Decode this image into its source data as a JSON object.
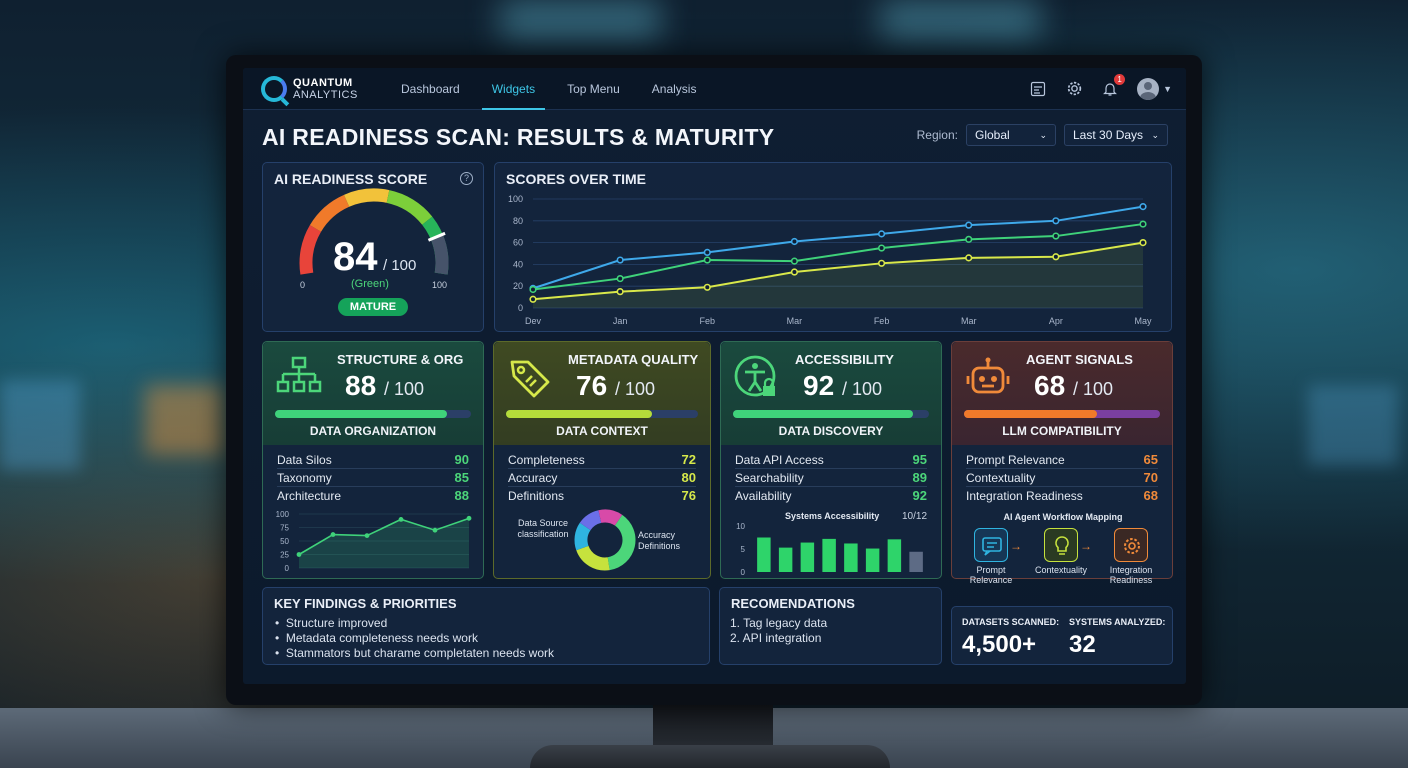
{
  "nav": {
    "brand_line1": "QUANTUM",
    "brand_line2": "ANALYTICS",
    "items": [
      "Dashboard",
      "Widgets",
      "Top Menu",
      "Analysis"
    ],
    "active": "Widgets",
    "notification_count": "1"
  },
  "page": {
    "title": "AI READINESS SCAN: RESULTS & MATURITY",
    "region_label": "Region:",
    "region_value": "Global",
    "range_value": "Last 30 Days"
  },
  "readiness": {
    "title": "AI READINESS SCORE",
    "score": "84",
    "max": "/ 100",
    "status": "(Green)",
    "min_label": "0",
    "max_label": "100",
    "level": "MATURE",
    "score_value": 84
  },
  "chart_data": {
    "type": "line",
    "title": "SCORES OVER TIME",
    "categories": [
      "Dev",
      "Jan",
      "Feb",
      "Mar",
      "Feb",
      "Mar",
      "Apr",
      "May"
    ],
    "ylim": [
      0,
      100
    ],
    "yticks": [
      "0",
      "20",
      "40",
      "60",
      "80",
      "100"
    ],
    "grid": true,
    "series": [
      {
        "color": "#3fa9ea",
        "values": [
          18,
          44,
          51,
          61,
          68,
          76,
          80,
          93
        ]
      },
      {
        "color": "#3fd27a",
        "values": [
          17,
          27,
          44,
          43,
          55,
          63,
          66,
          77
        ]
      },
      {
        "color": "#d9e84a",
        "values": [
          8,
          15,
          19,
          33,
          41,
          46,
          47,
          60
        ]
      }
    ]
  },
  "cards": {
    "structure": {
      "name": "STRUCTURE & ORG",
      "score": "88",
      "max": "/ 100",
      "sub": "DATA ORGANIZATION",
      "progress": 0.88,
      "rows": [
        [
          "Data Silos",
          "90"
        ],
        [
          "Taxonomy",
          "85"
        ],
        [
          "Architecture",
          "88"
        ]
      ],
      "mini_chart": {
        "type": "line",
        "yticks": [
          "100",
          "75",
          "50",
          "25",
          "0"
        ],
        "ylim": [
          0,
          100
        ],
        "values": [
          25,
          62,
          60,
          90,
          70,
          92
        ]
      }
    },
    "metadata": {
      "name": "METADATA QUALITY",
      "score": "76",
      "max": "/ 100",
      "sub": "DATA CONTEXT",
      "progress": 0.76,
      "rows": [
        [
          "Completeness",
          "72"
        ],
        [
          "Accuracy",
          "80"
        ],
        [
          "Definitions",
          "76"
        ]
      ],
      "donut_left": "Data Source classification",
      "donut_right": "Accuracy Definitions",
      "donut": {
        "type": "pie",
        "values": [
          38,
          22,
          15,
          12,
          13
        ],
        "colors": [
          "#4cd67a",
          "#c6e23d",
          "#2fb4e0",
          "#6b6fe8",
          "#d84aa8"
        ]
      }
    },
    "accessibility": {
      "name": "ACCESSIBILITY",
      "score": "92",
      "max": "/ 100",
      "sub": "DATA DISCOVERY",
      "progress": 0.92,
      "rows": [
        [
          "Data API Access",
          "95"
        ],
        [
          "Searchability",
          "89"
        ],
        [
          "Availability",
          "92"
        ]
      ],
      "bar_title": "Systems Accessibility",
      "bar_count": "10/12",
      "bars": {
        "type": "bar",
        "yticks": [
          "10",
          "5",
          "0"
        ],
        "ylim": [
          0,
          10
        ],
        "values": [
          7.5,
          5.3,
          6.4,
          7.2,
          6.2,
          5.1,
          7.1,
          4.4
        ],
        "last_muted": true
      }
    },
    "agent": {
      "name": "AGENT SIGNALS",
      "score": "68",
      "max": "/ 100",
      "sub": "LLM COMPATIBILITY",
      "progress": 0.68,
      "rows": [
        [
          "Prompt Relevance",
          "65"
        ],
        [
          "Contextuality",
          "70"
        ],
        [
          "Integration Readiness",
          "68"
        ]
      ],
      "flow_title": "AI Agent Workflow Mapping",
      "flow": [
        "Prompt Relevance",
        "Contextuality",
        "Integration Readiness"
      ]
    }
  },
  "findings": {
    "title": "KEY FINDINGS & PRIORITIES",
    "items": [
      "Structure improved",
      "Metadata completeness needs work",
      "Stammators but charame completaten needs work"
    ]
  },
  "recommendations": {
    "title": "RECOMENDATIONS",
    "items": [
      "1. Tag legacy data",
      "2. API integration"
    ]
  },
  "stats": {
    "datasets_label": "DATASETS SCANNED:",
    "datasets_value": "4,500+",
    "systems_label": "SYSTEMS ANALYZED:",
    "systems_value": "32"
  }
}
